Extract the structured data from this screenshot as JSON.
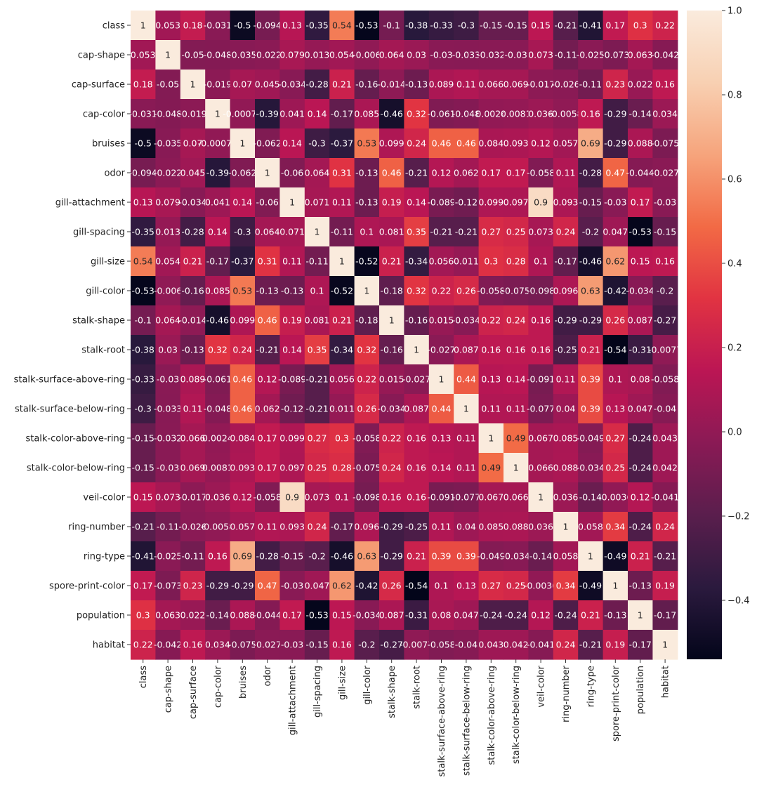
{
  "chart_data": {
    "type": "heatmap",
    "title": "",
    "xlabel": "",
    "ylabel": "",
    "labels": [
      "class",
      "cap-shape",
      "cap-surface",
      "cap-color",
      "bruises",
      "odor",
      "gill-attachment",
      "gill-spacing",
      "gill-size",
      "gill-color",
      "stalk-shape",
      "stalk-root",
      "stalk-surface-above-ring",
      "stalk-surface-below-ring",
      "stalk-color-above-ring",
      "stalk-color-below-ring",
      "veil-color",
      "ring-number",
      "ring-type",
      "spore-print-color",
      "population",
      "habitat"
    ],
    "annotations": [
      [
        "1",
        "0.053",
        "0.18",
        "-0.031",
        "-0.5",
        "-0.094",
        "0.13",
        "-0.35",
        "0.54",
        "-0.53",
        "-0.1",
        "-0.38",
        "-0.33",
        "-0.3",
        "-0.15",
        "-0.15",
        "0.15",
        "-0.21",
        "-0.41",
        "0.17",
        "0.3",
        "0.22"
      ],
      [
        "0.053",
        "1",
        "-0.05",
        "-0.048",
        "-0.035",
        "-0.022",
        "0.079",
        "0.013",
        "0.054",
        "-0.006",
        "0.064",
        "0.03",
        "-0.03",
        "-0.033",
        "-0.032",
        "-0.03",
        "0.073",
        "-0.11",
        "-0.025",
        "-0.073",
        "0.063",
        "-0.042"
      ],
      [
        "0.18",
        "-0.05",
        "1",
        "-0.019",
        "0.07",
        "0.045",
        "-0.034",
        "-0.28",
        "0.21",
        "-0.16",
        "-0.014",
        "-0.13",
        "0.089",
        "0.11",
        "0.066",
        "0.069",
        "-0.017",
        "-0.026",
        "-0.11",
        "0.23",
        "0.022",
        "0.16"
      ],
      [
        "-0.031",
        "-0.048",
        "-0.019",
        "1",
        "-0.00076",
        "-0.39",
        "0.041",
        "0.14",
        "-0.17",
        "0.085",
        "-0.46",
        "0.32",
        "-0.061",
        "-0.048",
        "0.0024",
        "0.0081",
        "0.036",
        "-0.0058",
        "0.16",
        "-0.29",
        "-0.14",
        "0.034"
      ],
      [
        "-0.5",
        "-0.035",
        "0.07",
        "-0.00076",
        "1",
        "-0.062",
        "0.14",
        "-0.3",
        "-0.37",
        "0.53",
        "0.099",
        "0.24",
        "0.46",
        "0.46",
        "0.084",
        "0.093",
        "0.12",
        "0.057",
        "0.69",
        "-0.29",
        "0.088",
        "-0.075"
      ],
      [
        "-0.094",
        "-0.022",
        "0.045",
        "-0.39",
        "-0.062",
        "1",
        "-0.06",
        "0.064",
        "0.31",
        "-0.13",
        "0.46",
        "-0.21",
        "0.12",
        "0.062",
        "0.17",
        "0.17",
        "-0.058",
        "0.11",
        "-0.28",
        "0.47",
        "-0.044",
        "-0.027"
      ],
      [
        "0.13",
        "0.079",
        "-0.034",
        "0.041",
        "0.14",
        "-0.06",
        "1",
        "0.071",
        "0.11",
        "-0.13",
        "0.19",
        "0.14",
        "-0.089",
        "-0.12",
        "0.099",
        "0.097",
        "0.9",
        "0.093",
        "-0.15",
        "-0.03",
        "0.17",
        "-0.03"
      ],
      [
        "-0.35",
        "0.013",
        "-0.28",
        "0.14",
        "-0.3",
        "0.064",
        "0.071",
        "1",
        "-0.11",
        "0.1",
        "0.081",
        "0.35",
        "-0.21",
        "-0.21",
        "0.27",
        "0.25",
        "0.073",
        "0.24",
        "-0.2",
        "0.047",
        "-0.53",
        "-0.15"
      ],
      [
        "0.54",
        "0.054",
        "0.21",
        "-0.17",
        "-0.37",
        "0.31",
        "0.11",
        "-0.11",
        "1",
        "-0.52",
        "0.21",
        "-0.34",
        "0.056",
        "0.011",
        "0.3",
        "0.28",
        "0.1",
        "-0.17",
        "-0.46",
        "0.62",
        "0.15",
        "0.16"
      ],
      [
        "-0.53",
        "-0.006",
        "-0.16",
        "0.085",
        "0.53",
        "-0.13",
        "-0.13",
        "0.1",
        "-0.52",
        "1",
        "-0.18",
        "0.32",
        "0.22",
        "0.26",
        "-0.058",
        "-0.075",
        "-0.098",
        "0.096",
        "0.63",
        "-0.42",
        "-0.034",
        "-0.2"
      ],
      [
        "-0.1",
        "0.064",
        "-0.014",
        "-0.46",
        "0.099",
        "0.46",
        "0.19",
        "0.081",
        "0.21",
        "-0.18",
        "1",
        "-0.16",
        "0.015",
        "-0.034",
        "0.22",
        "0.24",
        "0.16",
        "-0.29",
        "-0.29",
        "0.26",
        "0.087",
        "-0.27"
      ],
      [
        "-0.38",
        "0.03",
        "-0.13",
        "0.32",
        "0.24",
        "-0.21",
        "0.14",
        "0.35",
        "-0.34",
        "0.32",
        "-0.16",
        "1",
        "-0.027",
        "0.087",
        "0.16",
        "0.16",
        "0.16",
        "-0.25",
        "0.21",
        "-0.54",
        "-0.31",
        "-0.0077"
      ],
      [
        "-0.33",
        "-0.03",
        "0.089",
        "-0.061",
        "0.46",
        "0.12",
        "-0.089",
        "-0.21",
        "0.056",
        "0.22",
        "0.015",
        "-0.027",
        "1",
        "0.44",
        "0.13",
        "0.14",
        "-0.091",
        "0.11",
        "0.39",
        "0.1",
        "0.08",
        "-0.058"
      ],
      [
        "-0.3",
        "-0.033",
        "0.11",
        "-0.048",
        "0.46",
        "0.062",
        "-0.12",
        "-0.21",
        "0.011",
        "0.26",
        "-0.034",
        "0.087",
        "0.44",
        "1",
        "0.11",
        "0.11",
        "-0.077",
        "0.04",
        "0.39",
        "0.13",
        "0.047",
        "-0.04"
      ],
      [
        "-0.15",
        "-0.032",
        "0.066",
        "0.0024",
        "0.084",
        "0.17",
        "0.099",
        "0.27",
        "0.3",
        "-0.058",
        "0.22",
        "0.16",
        "0.13",
        "0.11",
        "1",
        "0.49",
        "0.067",
        "0.085",
        "-0.049",
        "0.27",
        "-0.24",
        "0.043"
      ],
      [
        "-0.15",
        "-0.03",
        "0.069",
        "0.0081",
        "0.093",
        "0.17",
        "0.097",
        "0.25",
        "0.28",
        "-0.075",
        "0.24",
        "0.16",
        "0.14",
        "0.11",
        "0.49",
        "1",
        "0.066",
        "0.088",
        "-0.034",
        "0.25",
        "-0.24",
        "0.042"
      ],
      [
        "0.15",
        "0.073",
        "-0.017",
        "0.036",
        "0.12",
        "-0.058",
        "0.9",
        "0.073",
        "0.1",
        "-0.098",
        "0.16",
        "0.16",
        "-0.091",
        "-0.077",
        "0.067",
        "0.066",
        "1",
        "0.036",
        "-0.14",
        "-0.0036",
        "0.12",
        "-0.041"
      ],
      [
        "-0.21",
        "-0.11",
        "-0.026",
        "-0.0058",
        "0.057",
        "0.11",
        "0.093",
        "0.24",
        "-0.17",
        "0.096",
        "-0.29",
        "-0.25",
        "0.11",
        "0.04",
        "0.085",
        "0.088",
        "0.036",
        "1",
        "0.058",
        "0.34",
        "-0.24",
        "0.24"
      ],
      [
        "-0.41",
        "-0.025",
        "-0.11",
        "0.16",
        "0.69",
        "-0.28",
        "-0.15",
        "-0.2",
        "-0.46",
        "0.63",
        "-0.29",
        "0.21",
        "0.39",
        "0.39",
        "-0.049",
        "-0.034",
        "-0.14",
        "0.058",
        "1",
        "-0.49",
        "0.21",
        "-0.21"
      ],
      [
        "0.17",
        "-0.073",
        "0.23",
        "-0.29",
        "-0.29",
        "0.47",
        "-0.03",
        "0.047",
        "0.62",
        "-0.42",
        "0.26",
        "-0.54",
        "0.1",
        "0.13",
        "0.27",
        "0.25",
        "-0.0036",
        "0.34",
        "-0.49",
        "1",
        "-0.13",
        "0.19"
      ],
      [
        "0.3",
        "0.063",
        "0.022",
        "-0.14",
        "0.088",
        "-0.044",
        "0.17",
        "-0.53",
        "0.15",
        "-0.034",
        "0.087",
        "-0.31",
        "0.08",
        "0.047",
        "-0.24",
        "-0.24",
        "0.12",
        "-0.24",
        "0.21",
        "-0.13",
        "1",
        "-0.17"
      ],
      [
        "0.22",
        "-0.042",
        "0.16",
        "0.034",
        "-0.075",
        "-0.027",
        "-0.03",
        "-0.15",
        "0.16",
        "-0.2",
        "-0.27",
        "-0.0077",
        "-0.058",
        "-0.04",
        "0.043",
        "0.042",
        "-0.041",
        "0.24",
        "-0.21",
        "0.19",
        "-0.17",
        "1"
      ]
    ],
    "vmin": -0.54,
    "vmax": 1.0,
    "colormap": [
      "#03051a",
      "#2b1a3e",
      "#5a1e4d",
      "#8a1a55",
      "#bb1654",
      "#e13342",
      "#f26a45",
      "#f6a47c",
      "#f8d0b2",
      "#faebdd"
    ],
    "colorbar": {
      "ticks": [
        1.0,
        0.8,
        0.6,
        0.4,
        0.2,
        0.0,
        -0.2,
        -0.4
      ],
      "tick_labels": [
        "1.0",
        "0.8",
        "0.6",
        "0.4",
        "0.2",
        "0.0",
        "−0.2",
        "−0.4"
      ]
    }
  }
}
